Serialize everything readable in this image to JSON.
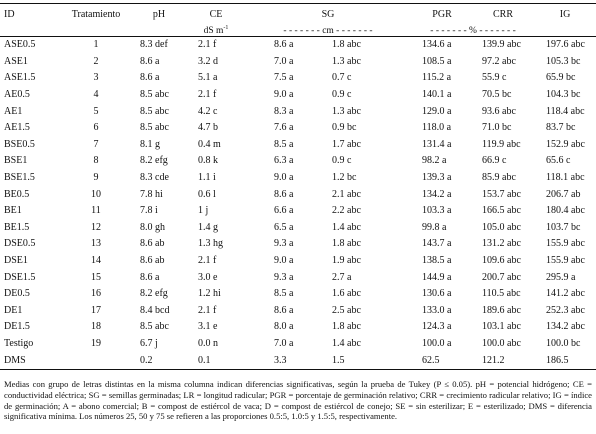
{
  "header": {
    "id": "ID",
    "tratamiento": "Tratamiento",
    "ph": "pH",
    "ce": "CE",
    "sg": "SG",
    "pgr": "PGR",
    "crr": "CRR",
    "ig": "IG"
  },
  "units": {
    "ce_unit": "dS m",
    "ce_sup": "-1",
    "sg_cm": "- - - - - - - cm - - - - - - -",
    "pct": "- - - - - - - % - - - - - - -"
  },
  "rows": [
    {
      "id": "ASE0.5",
      "t": "1",
      "ph": "8.3 def",
      "ce": "2.1 f",
      "sg": "8.6 a",
      "lr": "1.8 abc",
      "pgr": "134.6 a",
      "crr": "139.9 abc",
      "ig": "197.6 abc"
    },
    {
      "id": "ASE1",
      "t": "2",
      "ph": "8.6 a",
      "ce": "3.2 d",
      "sg": "7.0 a",
      "lr": "1.3 abc",
      "pgr": "108.5 a",
      "crr": "97.2 abc",
      "ig": "105.3 bc"
    },
    {
      "id": "ASE1.5",
      "t": "3",
      "ph": "8.6 a",
      "ce": "5.1 a",
      "sg": "7.5 a",
      "lr": "0.7 c",
      "pgr": "115.2 a",
      "crr": "55.9 c",
      "ig": "65.9 bc"
    },
    {
      "id": "AE0.5",
      "t": "4",
      "ph": "8.5 abc",
      "ce": "2.1 f",
      "sg": "9.0 a",
      "lr": "0.9 c",
      "pgr": "140.1 a",
      "crr": "70.5 bc",
      "ig": "104.3 bc"
    },
    {
      "id": "AE1",
      "t": "5",
      "ph": "8.5 abc",
      "ce": "4.2 c",
      "sg": "8.3 a",
      "lr": "1.3 abc",
      "pgr": "129.0 a",
      "crr": "93.6 abc",
      "ig": "118.4 abc"
    },
    {
      "id": "AE1.5",
      "t": "6",
      "ph": "8.5 abc",
      "ce": "4.7 b",
      "sg": "7.6 a",
      "lr": "0.9 bc",
      "pgr": "118.0 a",
      "crr": "71.0 bc",
      "ig": "83.7 bc"
    },
    {
      "id": "BSE0.5",
      "t": "7",
      "ph": "8.1 g",
      "ce": "0.4 m",
      "sg": "8.5 a",
      "lr": "1.7 abc",
      "pgr": "131.4 a",
      "crr": "119.9 abc",
      "ig": "152.9 abc"
    },
    {
      "id": "BSE1",
      "t": "8",
      "ph": "8.2 efg",
      "ce": "0.8 k",
      "sg": "6.3 a",
      "lr": "0.9 c",
      "pgr": "98.2 a",
      "crr": "66.9 c",
      "ig": "65.6 c"
    },
    {
      "id": "BSE1.5",
      "t": "9",
      "ph": "8.3 cde",
      "ce": "1.1 i",
      "sg": "9.0 a",
      "lr": "1.2 bc",
      "pgr": "139.3 a",
      "crr": "85.9 abc",
      "ig": "118.1 abc"
    },
    {
      "id": "BE0.5",
      "t": "10",
      "ph": "7.8 hi",
      "ce": "0.6 l",
      "sg": "8.6 a",
      "lr": "2.1 abc",
      "pgr": "134.2 a",
      "crr": "153.7 abc",
      "ig": "206.7 ab"
    },
    {
      "id": "BE1",
      "t": "11",
      "ph": "7.8 i",
      "ce": "1 j",
      "sg": "6.6 a",
      "lr": "2.2 abc",
      "pgr": "103.3 a",
      "crr": "166.5 abc",
      "ig": "180.4 abc"
    },
    {
      "id": "BE1.5",
      "t": "12",
      "ph": "8.0 gh",
      "ce": "1.4 g",
      "sg": "6.5 a",
      "lr": "1.4 abc",
      "pgr": "99.8 a",
      "crr": "105.0 abc",
      "ig": "103.7 bc"
    },
    {
      "id": "DSE0.5",
      "t": "13",
      "ph": "8.6 ab",
      "ce": "1.3 hg",
      "sg": "9.3 a",
      "lr": "1.8 abc",
      "pgr": "143.7 a",
      "crr": "131.2 abc",
      "ig": "155.9 abc"
    },
    {
      "id": "DSE1",
      "t": "14",
      "ph": "8.6 ab",
      "ce": "2.1 f",
      "sg": "9.0 a",
      "lr": "1.9 abc",
      "pgr": "138.5 a",
      "crr": "109.6 abc",
      "ig": "155.9 abc"
    },
    {
      "id": "DSE1.5",
      "t": "15",
      "ph": "8.6 a",
      "ce": "3.0 e",
      "sg": "9.3 a",
      "lr": "2.7 a",
      "pgr": "144.9 a",
      "crr": "200.7 abc",
      "ig": "295.9 a"
    },
    {
      "id": "DE0.5",
      "t": "16",
      "ph": "8.2 efg",
      "ce": "1.2 hi",
      "sg": "8.5 a",
      "lr": "1.6 abc",
      "pgr": "130.6 a",
      "crr": "110.5 abc",
      "ig": "141.2 abc"
    },
    {
      "id": "DE1",
      "t": "17",
      "ph": "8.4 bcd",
      "ce": "2.1 f",
      "sg": "8.6 a",
      "lr": "2.5 abc",
      "pgr": "133.0 a",
      "crr": "189.6 abc",
      "ig": "252.3 abc"
    },
    {
      "id": "DE1.5",
      "t": "18",
      "ph": "8.5 abc",
      "ce": "3.1 e",
      "sg": "8.0 a",
      "lr": "1.8 abc",
      "pgr": "124.3 a",
      "crr": "103.1 abc",
      "ig": "134.2 abc"
    },
    {
      "id": "Testigo",
      "t": "19",
      "ph": "6.7 j",
      "ce": "0.0 n",
      "sg": "7.0 a",
      "lr": "1.4 abc",
      "pgr": "100.0 a",
      "crr": "100.0 abc",
      "ig": "100.0 bc"
    },
    {
      "id": "DMS",
      "t": "",
      "ph": "0.2",
      "ce": "0.1",
      "sg": "3.3",
      "lr": "1.5",
      "pgr": "62.5",
      "crr": "121.2",
      "ig": "186.5"
    }
  ],
  "note": "Medias con grupo de letras distintas en la misma columna indican diferencias significativas, según la prueba de Tukey (P ≤ 0.05). pH = potencial hidrógeno; CE = conductividad eléctrica; SG = semillas germinadas; LR = longitud radicular; PGR = porcentaje de germinación relativo; CRR = crecimiento radicular relativo; IG = índice de germinación; A = abono comercial; B = compost de estiércol de vaca; D = compost de estiércol de conejo; SE = sin esterilizar; E = esterilizado; DMS = diferencia significativa mínima. Los números 25, 50 y 75 se refieren a las proporciones 0.5:5, 1.0:5 y 1.5:5, respectivamente."
}
